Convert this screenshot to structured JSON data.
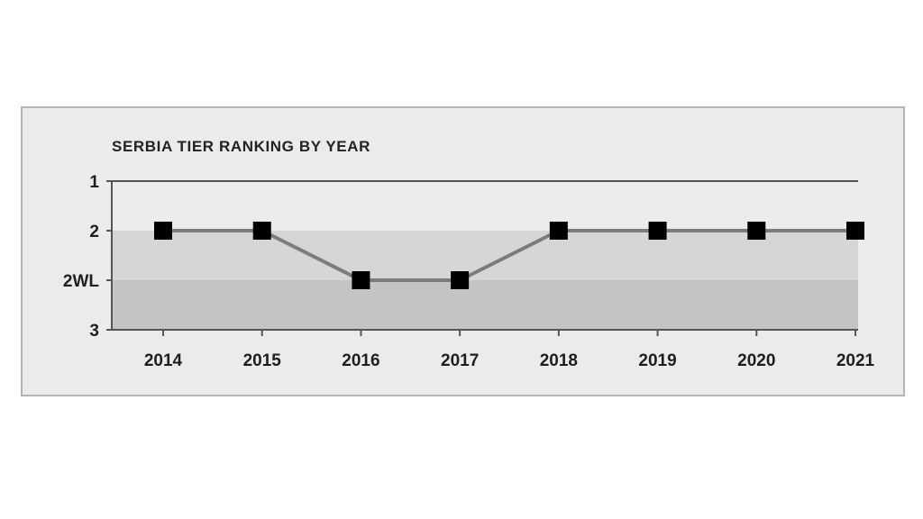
{
  "chart_data": {
    "type": "line",
    "title": "SERBIA TIER RANKING BY YEAR",
    "xlabel": "",
    "ylabel": "",
    "categories": [
      "2014",
      "2015",
      "2016",
      "2017",
      "2018",
      "2019",
      "2020",
      "2021"
    ],
    "y_tick_labels": [
      "1",
      "2",
      "2WL",
      "3"
    ],
    "series": [
      {
        "values": [
          "2",
          "2",
          "2WL",
          "2WL",
          "2",
          "2",
          "2",
          "2"
        ]
      }
    ],
    "y_order": "top-to-bottom: 1, 2, 2WL, 3",
    "grid": false,
    "legend": "none",
    "colors": {
      "panel_background": "#ebebeb",
      "panel_border": "#b4b4b4",
      "band_1_to_2": "#ececec",
      "band_2_to_2WL": "#d6d6d6",
      "band_2WL_to_3": "#c4c4c4",
      "axis": "#555555",
      "line": "#7c7c7c",
      "marker": "#000000",
      "text": "#1e1e1e"
    },
    "marker": "filled-square"
  }
}
